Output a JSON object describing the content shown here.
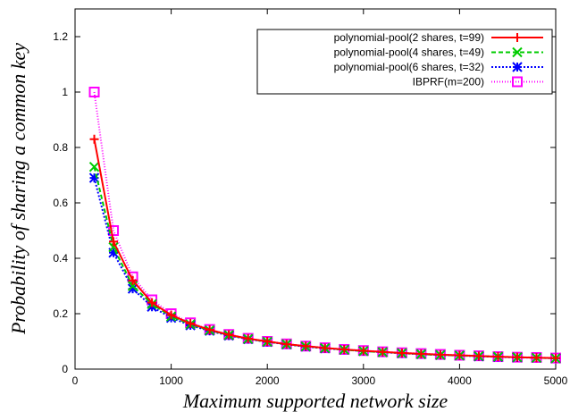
{
  "chart_data": {
    "type": "line",
    "xlabel": "Maximum supported network size",
    "ylabel": "Probability of sharing a common key",
    "xlim": [
      0,
      5000
    ],
    "ylim": [
      0,
      1.3
    ],
    "xticks": [
      0,
      1000,
      2000,
      3000,
      4000,
      5000
    ],
    "yticks": [
      0,
      0.2,
      0.4,
      0.6,
      0.8,
      1,
      1.2
    ],
    "xtick_labels": [
      "0",
      "1000",
      "2000",
      "3000",
      "4000",
      "5000"
    ],
    "ytick_labels": [
      "0",
      "0.2",
      "0.4",
      "0.6",
      "0.8",
      "1",
      "1.2"
    ],
    "legend_position": "top-right",
    "grid": false,
    "x": [
      200,
      400,
      600,
      800,
      1000,
      1200,
      1400,
      1600,
      1800,
      2000,
      2200,
      2400,
      2600,
      2800,
      3000,
      3200,
      3400,
      3600,
      3800,
      4000,
      4200,
      4400,
      4600,
      4800,
      5000
    ],
    "series": [
      {
        "name": "polynomial-pool(2 shares, t=99)",
        "color": "#ff0000",
        "marker": "plus",
        "dash": "",
        "values": [
          0.83,
          0.46,
          0.32,
          0.24,
          0.195,
          0.165,
          0.142,
          0.124,
          0.11,
          0.1,
          0.09,
          0.083,
          0.076,
          0.071,
          0.066,
          0.062,
          0.058,
          0.055,
          0.052,
          0.05,
          0.047,
          0.045,
          0.043,
          0.041,
          0.04
        ]
      },
      {
        "name": "polynomial-pool(4 shares, t=49)",
        "color": "#00cc00",
        "marker": "cross",
        "dash": "5,3",
        "values": [
          0.73,
          0.44,
          0.3,
          0.235,
          0.19,
          0.162,
          0.14,
          0.123,
          0.109,
          0.099,
          0.09,
          0.082,
          0.076,
          0.07,
          0.065,
          0.061,
          0.058,
          0.054,
          0.051,
          0.049,
          0.047,
          0.045,
          0.043,
          0.041,
          0.039
        ]
      },
      {
        "name": "polynomial-pool(6 shares, t=32)",
        "color": "#0000ff",
        "marker": "star",
        "dash": "2,2",
        "values": [
          0.69,
          0.42,
          0.29,
          0.225,
          0.185,
          0.158,
          0.138,
          0.121,
          0.108,
          0.098,
          0.089,
          0.081,
          0.075,
          0.07,
          0.065,
          0.061,
          0.057,
          0.054,
          0.051,
          0.049,
          0.046,
          0.044,
          0.042,
          0.041,
          0.039
        ]
      },
      {
        "name": "IBPRF(m=200)",
        "color": "#ff00ff",
        "marker": "square",
        "dash": "1,2",
        "values": [
          1.0,
          0.5,
          0.333,
          0.25,
          0.2,
          0.167,
          0.143,
          0.125,
          0.111,
          0.1,
          0.091,
          0.083,
          0.077,
          0.071,
          0.067,
          0.0625,
          0.059,
          0.056,
          0.053,
          0.05,
          0.048,
          0.045,
          0.043,
          0.042,
          0.04
        ]
      }
    ]
  }
}
